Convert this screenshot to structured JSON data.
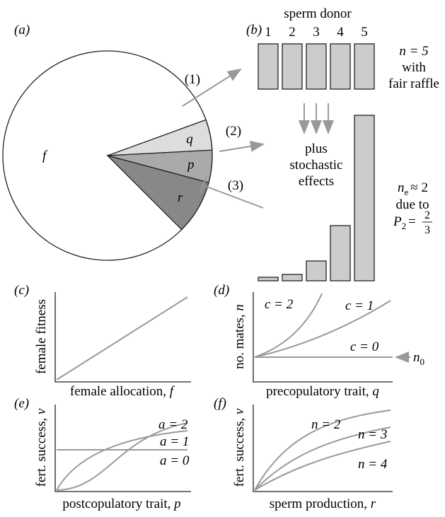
{
  "panel_a": {
    "label": "(a)",
    "f": "f",
    "q": "q",
    "p": "p",
    "r": "r"
  },
  "panel_b": {
    "label": "(b)",
    "title": "sperm donor",
    "donors": [
      "1",
      "2",
      "3",
      "4",
      "5"
    ],
    "fair": {
      "n": "n = 5",
      "line2": "with",
      "line3": "fair raffle"
    },
    "middle": [
      "plus",
      "stochastic",
      "effects"
    ],
    "skew": {
      "n": "n",
      "sub": "e",
      "approx": "≈ 2",
      "line2": "due to",
      "P": "P",
      "Psub": "2",
      "eq": "=",
      "num": "2",
      "den": "3"
    },
    "arrows": [
      "(1)",
      "(2)",
      "(3)"
    ]
  },
  "panel_c": {
    "label": "(c)",
    "ylabel": "female fitness",
    "xlabel": "female allocation,",
    "xvar": "f"
  },
  "panel_d": {
    "label": "(d)",
    "ylabel": "no. mates,",
    "yvar": "n",
    "xlabel": "precopulatory trait,",
    "xvar": "q",
    "curves": [
      "c = 2",
      "c = 1",
      "c = 0"
    ],
    "n0": "n",
    "n0sub": "0"
  },
  "panel_e": {
    "label": "(e)",
    "ylabel": "fert. success,",
    "yvar": "v",
    "xlabel": "postcopulatory trait,",
    "xvar": "p",
    "curves": [
      "a = 2",
      "a = 1",
      "a = 0"
    ]
  },
  "panel_f": {
    "label": "(f)",
    "ylabel": "fert. success,",
    "yvar": "v",
    "xlabel": "sperm production,",
    "xvar": "r",
    "curves": [
      "n = 2",
      "n = 3",
      "n = 4"
    ]
  }
}
